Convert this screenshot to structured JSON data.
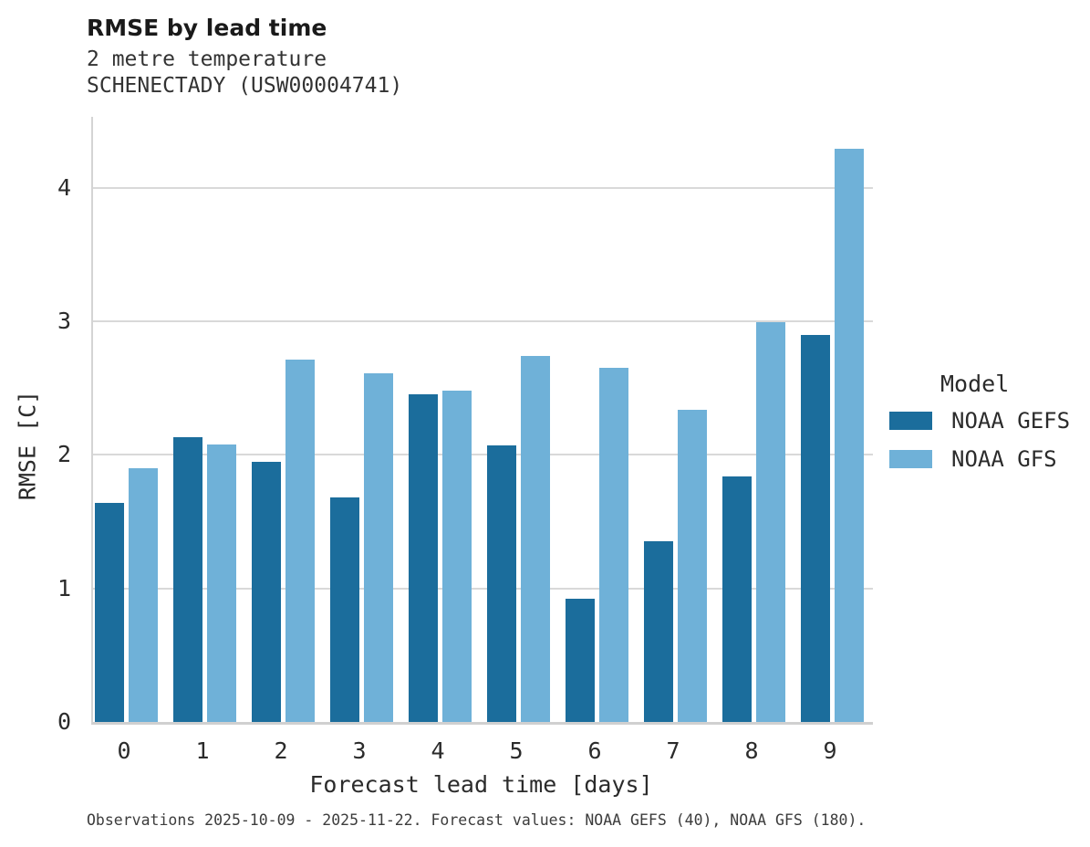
{
  "title": "RMSE by lead time",
  "footer": "Observations 2025-10-09 - 2025-11-22. Forecast values: NOAA GEFS (40), NOAA GFS (180).",
  "colors": {
    "gefs_dark_blue": "#1b6d9c",
    "gfs_light_blue": "#6fb1d8",
    "gridline_gray": "#d9d9d9",
    "axis_gray": "#d0d0d0",
    "text_dark": "#2b2b2b"
  },
  "chart_data": {
    "type": "bar",
    "title": "RMSE by lead time",
    "subtitle": [
      "2 metre temperature",
      "SCHENECTADY (USW00004741)"
    ],
    "categories": [
      "0",
      "1",
      "2",
      "3",
      "4",
      "5",
      "6",
      "7",
      "8",
      "9"
    ],
    "series": [
      {
        "name": "NOAA GEFS",
        "color": "#1b6d9c",
        "values": [
          1.64,
          2.13,
          1.95,
          1.68,
          2.45,
          2.07,
          0.92,
          1.35,
          1.84,
          2.9
        ]
      },
      {
        "name": "NOAA GFS",
        "color": "#6fb1d8",
        "values": [
          1.9,
          2.08,
          2.71,
          2.61,
          2.48,
          2.74,
          2.65,
          2.34,
          2.99,
          4.29
        ]
      }
    ],
    "xlabel": "Forecast lead time [days]",
    "ylabel": "RMSE [C]",
    "ylim": [
      0,
      4.53
    ],
    "yticks": [
      0,
      1,
      2,
      3,
      4
    ],
    "grid": "horizontal",
    "legend_title": "Model",
    "legend_position": "right"
  }
}
